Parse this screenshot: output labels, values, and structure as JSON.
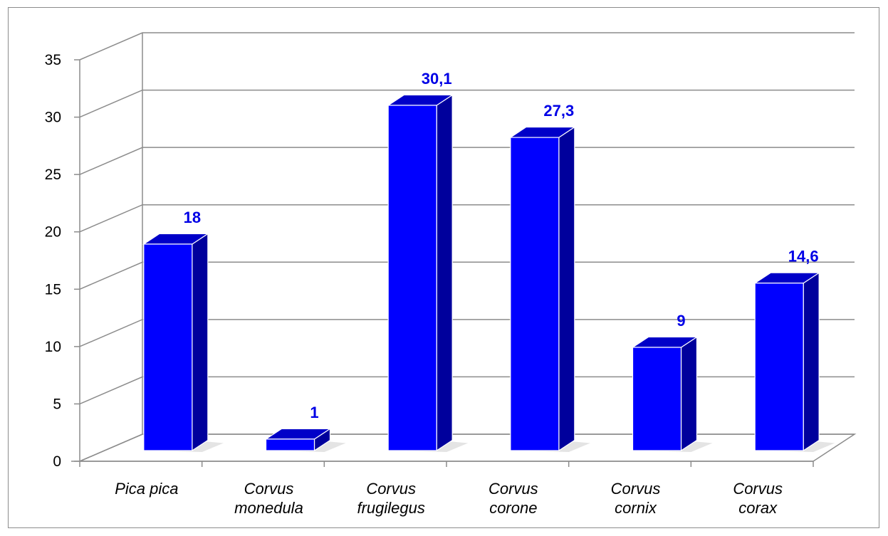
{
  "chart_data": {
    "type": "bar",
    "style": "3d-column",
    "categories": [
      [
        "Pica pica"
      ],
      [
        "Corvus",
        "monedula"
      ],
      [
        "Corvus",
        "frugilegus"
      ],
      [
        "Corvus",
        "corone"
      ],
      [
        "Corvus",
        "cornix"
      ],
      [
        "Corvus",
        "corax"
      ]
    ],
    "values": [
      18,
      1,
      30.1,
      27.3,
      9,
      14.6
    ],
    "data_labels": [
      "18",
      "1",
      "30,1",
      "27,3",
      "9",
      "14,6"
    ],
    "y_ticks": [
      "0",
      "5",
      "10",
      "15",
      "20",
      "25",
      "30",
      "35"
    ],
    "ylim": [
      0,
      35
    ],
    "grid": true,
    "legend": false,
    "title": "",
    "xlabel": "",
    "ylabel": "",
    "colors": {
      "bar_front": "#0000ff",
      "bar_side": "#00009c",
      "bar_top": "#0000c8",
      "data_label": "#0000e6",
      "grid": "#8c8c8c"
    }
  }
}
